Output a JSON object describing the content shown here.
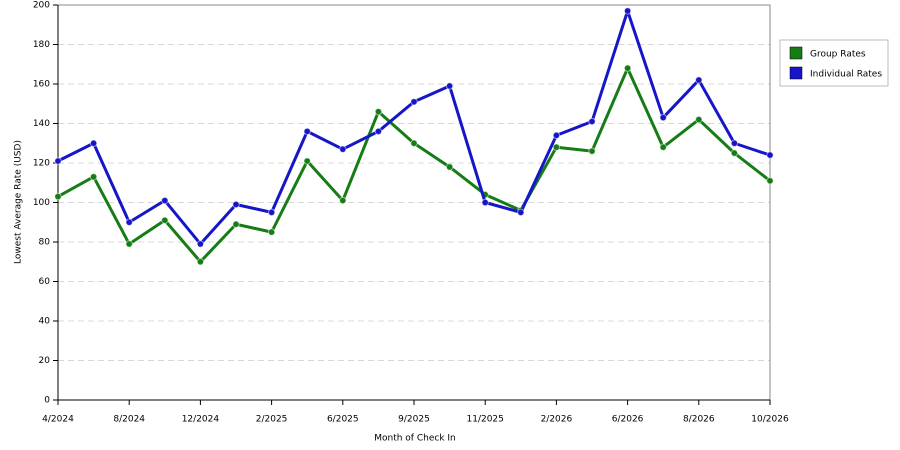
{
  "chart_data": {
    "type": "line",
    "x_label": "Month of Check In",
    "y_label": "Lowest Average Rate (USD)",
    "categories": [
      "4/2024",
      null,
      "8/2024",
      null,
      "12/2024",
      null,
      "2/2025",
      null,
      "6/2025",
      null,
      "9/2025",
      null,
      "11/2025",
      null,
      "2/2026",
      null,
      "6/2026",
      null,
      "8/2026",
      null,
      "10/2026"
    ],
    "series": [
      {
        "name": "Group Rates",
        "color": "#167c16",
        "values": [
          103,
          113,
          79,
          91,
          70,
          89,
          85,
          121,
          101,
          146,
          130,
          118,
          104,
          96,
          128,
          126,
          168,
          128,
          142,
          125,
          111
        ]
      },
      {
        "name": "Individual Rates",
        "color": "#1616c8",
        "values": [
          121,
          130,
          90,
          101,
          79,
          99,
          95,
          136,
          127,
          136,
          151,
          159,
          100,
          95,
          134,
          141,
          197,
          143,
          162,
          130,
          124
        ]
      }
    ],
    "ylim": [
      0,
      200
    ],
    "yticks": [
      0,
      20,
      40,
      60,
      80,
      100,
      120,
      140,
      160,
      180,
      200
    ],
    "grid": true,
    "legend": "right"
  }
}
